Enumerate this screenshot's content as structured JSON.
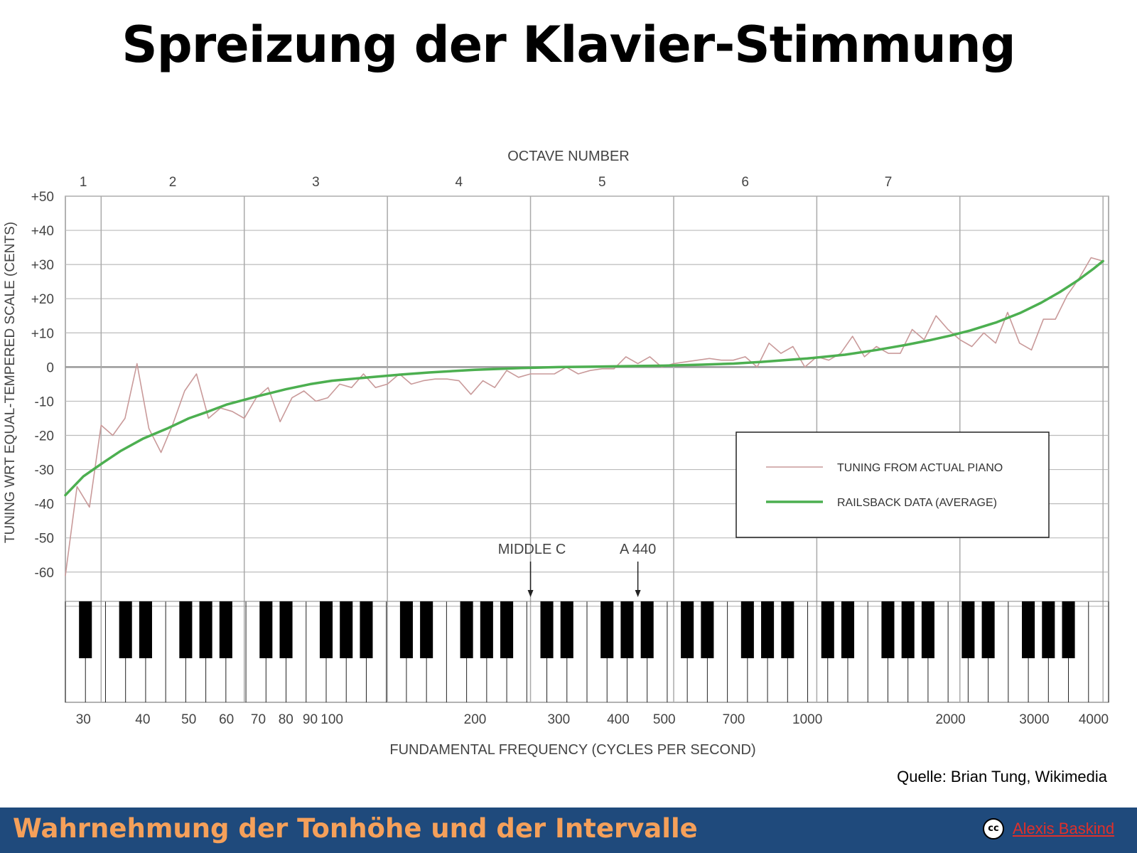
{
  "slide": {
    "title": "Spreizung der Klavier-Stimmung",
    "source": "Quelle: Brian Tung, Wikimedia",
    "footer_title": "Wahrnehmung der Tonhöhe und der Intervalle",
    "license_icon": "cc-icon",
    "license_text": "cc",
    "author": "Alexis Baskind"
  },
  "chart_data": {
    "type": "line",
    "x_scale": "log",
    "xlim": [
      27.5,
      4300
    ],
    "ylim": [
      -70,
      50
    ],
    "grid": true,
    "legend_placement": "lower-right",
    "top_axis_label": "OCTAVE NUMBER",
    "ylabel": "TUNING WRT EQUAL-TEMPERED SCALE (CENTS)",
    "xlabel": "FUNDAMENTAL FREQUENCY (CYCLES PER SECOND)",
    "y_ticks": [
      {
        "value": 50,
        "label": "+50"
      },
      {
        "value": 40,
        "label": "+40"
      },
      {
        "value": 30,
        "label": "+30"
      },
      {
        "value": 20,
        "label": "+20"
      },
      {
        "value": 10,
        "label": "+10"
      },
      {
        "value": 0,
        "label": "0"
      },
      {
        "value": -10,
        "label": "-10"
      },
      {
        "value": -20,
        "label": "-20"
      },
      {
        "value": -30,
        "label": "-30"
      },
      {
        "value": -40,
        "label": "-40"
      },
      {
        "value": -50,
        "label": "-50"
      },
      {
        "value": -60,
        "label": "-60"
      }
    ],
    "x_ticks": [
      {
        "value": 30,
        "label": "30"
      },
      {
        "value": 40,
        "label": "40"
      },
      {
        "value": 50,
        "label": "50"
      },
      {
        "value": 60,
        "label": "60"
      },
      {
        "value": 70,
        "label": "70"
      },
      {
        "value": 80,
        "label": "80"
      },
      {
        "value": 90,
        "label": "90"
      },
      {
        "value": 100,
        "label": "100"
      },
      {
        "value": 200,
        "label": "200"
      },
      {
        "value": 300,
        "label": "300"
      },
      {
        "value": 400,
        "label": "400"
      },
      {
        "value": 500,
        "label": "500"
      },
      {
        "value": 700,
        "label": "700"
      },
      {
        "value": 1000,
        "label": "1000"
      },
      {
        "value": 2000,
        "label": "2000"
      },
      {
        "value": 3000,
        "label": "3000"
      },
      {
        "value": 4000,
        "label": "4000"
      }
    ],
    "octave_bounds": [
      27.5,
      32.7,
      65.4,
      130.8,
      261.6,
      523.3,
      1046.5,
      2093,
      4186
    ],
    "octaves": [
      "1",
      "2",
      "3",
      "4",
      "5",
      "6",
      "7"
    ],
    "annotations": [
      {
        "label": "MIDDLE C",
        "x": 261.6
      },
      {
        "label": "A 440",
        "x": 440
      }
    ],
    "series": [
      {
        "name": "TUNING FROM ACTUAL PIANO",
        "color": "#c99a9a",
        "x": [
          27.5,
          29.1,
          30.9,
          32.7,
          34.6,
          36.7,
          38.9,
          41.2,
          43.7,
          46.2,
          49.0,
          51.9,
          55.0,
          58.3,
          61.7,
          65.4,
          69.3,
          73.4,
          77.8,
          82.4,
          87.3,
          92.5,
          98.0,
          103.8,
          110.0,
          116.5,
          123.5,
          130.8,
          138.6,
          146.8,
          155.6,
          164.8,
          174.6,
          185.0,
          196.0,
          207.7,
          220.0,
          233.1,
          246.9,
          261.6,
          277.2,
          293.7,
          311.1,
          329.6,
          349.2,
          370.0,
          392.0,
          415.3,
          440.0,
          466.2,
          493.9,
          523.3,
          554.4,
          587.3,
          622.3,
          659.3,
          698.5,
          740.0,
          784.0,
          830.6,
          880.0,
          932.3,
          987.8,
          1046.5,
          1108.7,
          1174.7,
          1244.5,
          1318.5,
          1396.9,
          1480.0,
          1568.0,
          1661.2,
          1760.0,
          1864.7,
          1975.5,
          2093.0,
          2217.5,
          2349.3,
          2489.0,
          2637.0,
          2793.8,
          2960.0,
          3136.0,
          3322.4,
          3520.0,
          3729.3,
          3951.1,
          4186.0
        ],
        "values": [
          -61,
          -35,
          -41,
          -17,
          -20,
          -15,
          1,
          -18,
          -25,
          -17,
          -7,
          -2,
          -15,
          -12,
          -13,
          -15,
          -9,
          -6,
          -16,
          -9,
          -7,
          -10,
          -9,
          -5,
          -6,
          -2,
          -6,
          -5,
          -2,
          -5,
          -4,
          -3.5,
          -3.5,
          -4,
          -8,
          -4,
          -6,
          -1,
          -3,
          -2,
          -2,
          -2,
          0,
          -2,
          -1,
          -0.5,
          -0.5,
          3,
          1,
          3,
          0,
          1,
          1.5,
          2,
          2.5,
          2,
          2,
          3,
          0,
          7,
          4,
          6,
          0,
          3,
          2,
          4,
          9,
          3,
          6,
          4,
          4,
          11,
          8,
          15,
          11,
          8,
          6,
          10,
          7,
          16,
          7,
          5,
          14,
          14,
          21,
          26,
          32,
          31
        ]
      },
      {
        "name": "RAILSBACK DATA (AVERAGE)",
        "color": "#4caf50",
        "x": [
          27.5,
          30,
          33,
          36,
          40,
          45,
          50,
          55,
          60,
          70,
          80,
          90,
          100,
          120,
          140,
          160,
          200,
          250,
          300,
          350,
          440,
          500,
          600,
          700,
          800,
          1000,
          1200,
          1400,
          1600,
          1800,
          2000,
          2200,
          2500,
          2800,
          3100,
          3400,
          3700,
          4000,
          4186
        ],
        "values": [
          -37.5,
          -32,
          -28,
          -24.5,
          -21,
          -18,
          -15,
          -13,
          -11,
          -8.5,
          -6.5,
          -5,
          -4,
          -3,
          -2.2,
          -1.6,
          -0.8,
          -0.3,
          0,
          0.1,
          0.3,
          0.4,
          0.7,
          1,
          1.5,
          2.5,
          3.6,
          5,
          6.4,
          7.8,
          9.2,
          10.7,
          13.1,
          15.8,
          18.8,
          22,
          25.3,
          28.8,
          31
        ]
      }
    ]
  }
}
